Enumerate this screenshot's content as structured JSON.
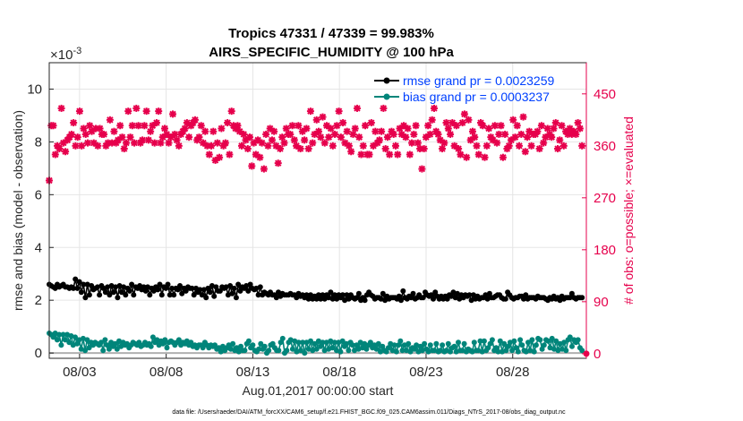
{
  "chart_data": {
    "type": "line",
    "title": "Tropics 47331 / 47339 = 99.983%",
    "subtitle": "AIRS_SPECIFIC_HUMIDITY @ 100 hPa",
    "xlabel": "Aug.01,2017 00:00:00 start",
    "ylabel": "rmse and bias (model - observation)",
    "y2label": "# of obs: o=possible; ×=evaluated",
    "yexponent": "×10",
    "yexponent_power": "-3",
    "footnote": "data file: /Users/raeder/DAI/ATM_forcXX/CAM6_setup/f.e21.FHIST_BGC.f09_025.CAM6assim.011/Diags_NTrS_2017-08/obs_diag_output.nc",
    "xlim": [
      1.25,
      32.25
    ],
    "ylim": [
      -0.2,
      11
    ],
    "y2lim": [
      -8,
      504
    ],
    "xticks": [
      3,
      8,
      13,
      18,
      23,
      28
    ],
    "xtick_labels": [
      "08/03",
      "08/08",
      "08/13",
      "08/18",
      "08/23",
      "08/28"
    ],
    "yticks": [
      0,
      2,
      4,
      6,
      8,
      10
    ],
    "ytick_labels": [
      "0",
      "2",
      "4",
      "6",
      "8",
      "10"
    ],
    "y2ticks": [
      0,
      90,
      180,
      270,
      360,
      450
    ],
    "y2tick_labels": [
      "0",
      "90",
      "180",
      "270",
      "360",
      "450"
    ],
    "colors": {
      "rmse": "#000000",
      "bias": "#00857a",
      "obs": "#e6004c",
      "grid": "#e5e5e5",
      "legend_text": "#0040ff"
    },
    "series": [
      {
        "name": "rmse grand pr = 0.0023259",
        "axis": "left",
        "values": [
          2.6,
          2.55,
          2.5,
          2.45,
          2.6,
          2.5,
          2.55,
          2.6,
          2.5,
          2.5,
          2.45,
          2.5,
          2.45,
          2.8,
          2.45,
          2.7,
          2.3,
          2.6,
          2.1,
          2.6,
          2.2,
          2.55,
          2.4,
          2.45,
          2.5,
          2.2,
          2.55,
          2.45,
          2.3,
          2.5,
          2.2,
          2.55,
          2.3,
          2.5,
          2.1,
          2.55,
          2.3,
          2.5,
          2.2,
          2.45,
          2.35,
          2.6,
          2.2,
          2.5,
          2.45,
          2.55,
          2.4,
          2.5,
          2.35,
          2.5,
          2.2,
          2.45,
          2.35,
          2.5,
          2.4,
          2.6,
          2.2,
          2.5,
          2.45,
          2.6,
          2.2,
          2.45,
          2.2,
          2.45,
          2.4,
          2.55,
          2.25,
          2.45,
          2.35,
          2.5,
          2.45,
          2.45,
          2.2,
          2.45,
          2.3,
          2.4,
          2.2,
          2.4,
          2.1,
          2.45,
          2.3,
          2.55,
          2.15,
          2.5,
          2.35,
          2.35,
          2.5,
          2.45,
          2.5,
          2.2,
          2.55,
          2.25,
          2.45,
          2.1,
          2.6,
          2.35,
          2.5,
          2.45,
          2.55,
          2.35,
          2.6,
          2.45,
          2.4,
          2.45,
          2.2,
          2.5,
          2.2,
          2.3,
          2.25,
          2.2,
          2.3,
          2.2,
          2.2,
          2.1,
          2.3,
          2.15,
          2.25,
          2.2,
          2.2,
          2.2,
          2.25,
          2.2,
          2.2,
          2.1,
          2.25,
          2.15,
          2.2,
          2.1,
          2.2,
          2.05,
          2.2,
          2.05,
          2.15,
          2.05,
          2.2,
          2.05,
          2.2,
          2.05,
          2.2,
          2.1,
          2.3,
          2.05,
          2.2,
          2.05,
          2.2,
          2.1,
          2.2,
          2.0,
          2.2,
          2.05,
          2.2,
          2.1,
          2.05,
          2.1,
          2.25,
          2.0,
          2.1,
          2.0,
          2.2,
          2.3,
          2.2,
          2.15,
          2.05,
          2.1,
          2.1,
          2.05,
          2.25,
          2.0,
          2.15,
          2.05,
          2.1,
          2.1,
          2.1,
          2.05,
          2.15,
          2.0,
          2.35,
          2.1,
          2.05,
          2.15,
          2.1,
          2.25,
          2.05,
          2.1,
          2.2,
          2.1,
          2.1,
          2.3,
          2.2,
          2.15,
          2.2,
          2.05,
          2.3,
          2.15,
          2.05,
          2.15,
          2.05,
          2.15,
          2.05,
          2.2,
          2.15,
          2.3,
          2.1,
          2.25,
          2.05,
          2.2,
          2.1,
          2.2,
          2.15,
          2.2,
          2.0,
          2.2,
          2.05,
          2.15,
          2.05,
          2.1,
          2.1,
          2.2,
          2.05,
          2.25,
          2.1,
          2.1,
          2.15,
          2.2,
          2.2,
          2.1,
          2.05,
          2.05,
          2.3,
          2.2,
          2.1,
          2.05,
          2.1,
          2.1,
          2.15,
          2.15,
          2.05,
          2.2,
          2.05,
          2.1,
          2.1,
          2.1,
          2.05,
          2.15,
          2.1,
          2.1,
          2.1,
          2.05,
          2.0,
          2.1,
          2.05,
          2.15,
          2.05,
          2.1,
          2.0,
          2.15,
          2.05,
          2.1,
          2.1,
          2.1,
          2.25,
          2.1,
          2.05,
          2.1,
          2.1,
          2.1
        ]
      },
      {
        "name": "bias grand pr = 0.0003237",
        "axis": "left",
        "values": [
          0.75,
          0.7,
          0.6,
          0.75,
          0.5,
          0.7,
          0.3,
          0.7,
          0.5,
          0.7,
          0.4,
          0.65,
          0.3,
          0.6,
          0.35,
          0.5,
          0.15,
          0.55,
          0.1,
          0.5,
          0.2,
          0.4,
          0.3,
          0.4,
          0.35,
          0.3,
          0.4,
          0.1,
          0.5,
          0.3,
          0.15,
          0.4,
          0.25,
          0.35,
          0.15,
          0.45,
          0.25,
          0.4,
          0.3,
          0.35,
          0.2,
          0.3,
          0.4,
          0.35,
          0.3,
          0.4,
          0.25,
          0.3,
          0.4,
          0.3,
          0.35,
          0.25,
          0.6,
          0.4,
          0.5,
          0.3,
          0.45,
          0.35,
          0.5,
          0.2,
          0.4,
          0.45,
          0.4,
          0.3,
          0.4,
          0.5,
          0.3,
          0.4,
          0.35,
          0.45,
          0.3,
          0.4,
          0.25,
          0.3,
          0.2,
          0.3,
          0.3,
          0.2,
          0.4,
          0.3,
          0.2,
          0.3,
          0.25,
          0.3,
          0.15,
          0.2,
          0.05,
          0.25,
          0.1,
          0.2,
          0.3,
          0.15,
          0.35,
          0.1,
          0.2,
          0.05,
          0.25,
          0.1,
          0.1,
          0.35,
          0.45,
          0.2,
          0.3,
          0.1,
          0.05,
          0.15,
          0.35,
          0.15,
          0.25,
          0.0,
          0.1,
          0.3,
          0.35,
          0.2,
          0.1,
          0.1,
          0.4,
          0.55,
          0.0,
          0.1,
          0.4,
          0.5,
          0.15,
          0.45,
          0.05,
          0.4,
          0.1,
          0.4,
          0.0,
          0.4,
          0.15,
          0.45,
          0.1,
          0.35,
          0.15,
          0.45,
          0.25,
          0.4,
          0.1,
          0.4,
          0.15,
          0.45,
          0.2,
          0.4,
          0.1,
          0.4,
          0.05,
          0.45,
          0.25,
          0.35,
          0.1,
          0.4,
          0.3,
          0.1,
          0.3,
          0.15,
          0.4,
          0.2,
          0.35,
          0.15,
          0.3,
          0.4,
          0.2,
          0.3,
          0.15,
          0.35,
          0.05,
          0.25,
          0.1,
          0.05,
          0.2,
          0.35,
          0.1,
          0.3,
          0.05,
          0.3,
          0.45,
          0.1,
          0.3,
          0.1,
          0.35,
          0.05,
          0.2,
          0.15,
          0.3,
          0.05,
          0.25,
          0.1,
          0.35,
          0.15,
          0.05,
          0.3,
          0.1,
          0.1,
          0.35,
          0.05,
          0.1,
          0.3,
          0.05,
          0.1,
          0.35,
          0.05,
          0.2,
          0.25,
          0.05,
          0.4,
          0.1,
          0.1,
          0.35,
          0.05,
          0.15,
          0.1,
          0.05,
          0.4,
          0.1,
          0.1,
          0.45,
          0.05,
          0.45,
          0.1,
          0.2,
          0.35,
          0.5,
          0.1,
          0.2,
          0.05,
          0.45,
          0.05,
          0.35,
          0.1,
          0.25,
          0.4,
          0.1,
          0.45,
          0.2,
          0.05,
          0.5,
          0.3,
          0.1,
          0.05,
          0.4,
          0.1,
          0.5,
          0.05,
          0.3,
          0.55,
          0.5,
          0.15,
          0.3,
          0.5,
          0.45,
          0.2,
          0.55,
          0.15,
          0.45,
          0.1,
          0.35,
          0.15,
          0.4,
          0.1,
          0.5,
          0.6,
          0.25,
          0.5,
          0.4,
          0.5,
          0.2,
          0.1
        ]
      },
      {
        "name": "# of obs (evaluated)",
        "axis": "right",
        "marker": "star",
        "values": [
          300,
          395,
          395,
          345,
          360,
          355,
          425,
          365,
          350,
          370,
          375,
          380,
          400,
          360,
          375,
          420,
          360,
          390,
          380,
          365,
          395,
          385,
          365,
          390,
          360,
          390,
          380,
          380,
          360,
          365,
          405,
          365,
          385,
          365,
          370,
          395,
          375,
          355,
          365,
          420,
          375,
          395,
          365,
          425,
          395,
          365,
          370,
          395,
          420,
          370,
          385,
          395,
          365,
          400,
          420,
          365,
          375,
          390,
          380,
          365,
          375,
          415,
          380,
          370,
          360,
          380,
          385,
          390,
          400,
          375,
          395,
          400,
          405,
          370,
          375,
          395,
          365,
          385,
          360,
          345,
          360,
          385,
          335,
          365,
          340,
          390,
          360,
          365,
          400,
          345,
          420,
          395,
          390,
          395,
          385,
          360,
          380,
          370,
          355,
          375,
          325,
          365,
          345,
          370,
          340,
          365,
          320,
          380,
          360,
          390,
          370,
          385,
          360,
          330,
          355,
          375,
          365,
          390,
          380,
          380,
          395,
          370,
          360,
          395,
          355,
          385,
          370,
          390,
          355,
          420,
          365,
          380,
          405,
          385,
          375,
          410,
          365,
          395,
          375,
          390,
          360,
          380,
          395,
          420,
          375,
          400,
          365,
          385,
          360,
          350,
          380,
          390,
          425,
          375,
          345,
          360,
          395,
          345,
          345,
          400,
          360,
          385,
          365,
          370,
          385,
          425,
          355,
          375,
          345,
          385,
          380,
          360,
          345,
          390,
          380,
          395,
          375,
          390,
          345,
          365,
          380,
          395,
          365,
          355,
          320,
          355,
          375,
          395,
          380,
          405,
          425,
          385,
          380,
          370,
          355,
          365,
          400,
          390,
          380,
          400,
          360,
          395,
          355,
          345,
          400,
          415,
          340,
          405,
          370,
          385,
          375,
          360,
          345,
          400,
          395,
          340,
          360,
          390,
          375,
          370,
          395,
          365,
          380,
          395,
          340,
          380,
          355,
          360,
          370,
          405,
          375,
          395,
          360,
          380,
          410,
          350,
          375,
          385,
          360,
          380,
          380,
          385,
          355,
          395,
          365,
          375,
          390,
          380,
          375,
          390,
          400,
          355,
          370,
          395,
          360,
          385,
          380,
          390,
          380,
          385,
          380,
          400,
          390,
          360
        ]
      }
    ]
  }
}
